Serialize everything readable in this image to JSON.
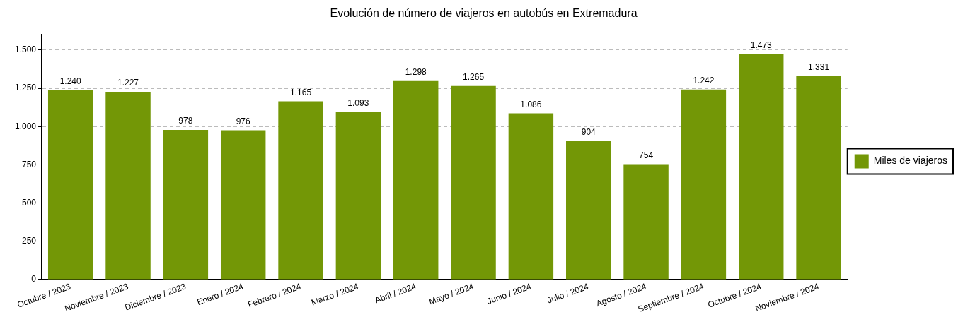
{
  "chart_data": {
    "type": "bar",
    "title": "Evolución de número de viajeros en autobús en Extremadura",
    "categories": [
      "Octubre / 2023",
      "Noviembre / 2023",
      "Diciembre / 2023",
      "Enero / 2024",
      "Febrero / 2024",
      "Marzo / 2024",
      "Abril / 2024",
      "Mayo / 2024",
      "Junio / 2024",
      "Julio / 2024",
      "Agosto / 2024",
      "Septiembre / 2024",
      "Octubre / 2024",
      "Noviembre / 2024"
    ],
    "series": [
      {
        "name": "Miles de viajeros",
        "color": "#739706",
        "values": [
          1240,
          1227,
          978,
          976,
          1165,
          1093,
          1298,
          1265,
          1086,
          904,
          754,
          1242,
          1473,
          1331
        ],
        "value_labels": [
          "1.240",
          "1.227",
          "978",
          "976",
          "1.165",
          "1.093",
          "1.298",
          "1.265",
          "1.086",
          "904",
          "754",
          "1.242",
          "1.473",
          "1.331"
        ]
      }
    ],
    "ylim": [
      0,
      1600
    ],
    "yticks": [
      0,
      250,
      500,
      750,
      {
        "value": 1000,
        "label": "1.000"
      },
      {
        "value": 1250,
        "label": "1.250"
      },
      {
        "value": 1500,
        "label": "1.500"
      }
    ],
    "grid": "y",
    "legend": "right"
  }
}
